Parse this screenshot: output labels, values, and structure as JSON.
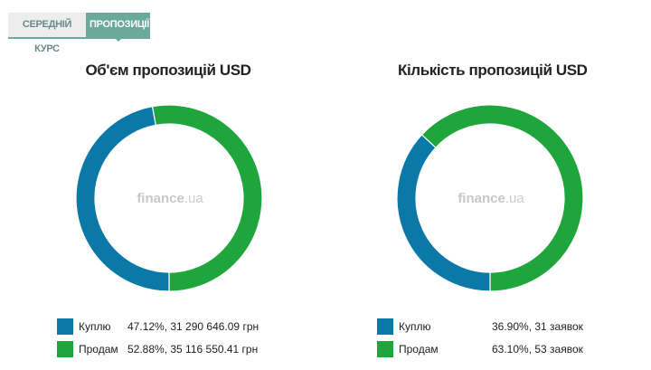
{
  "tabs": [
    {
      "label": "Середній курс",
      "active": false
    },
    {
      "label": "Пропозиції",
      "active": true
    }
  ],
  "colors": {
    "buy": "#0b79a8",
    "sell": "#1ea63c",
    "tab_active": "#6ba99c",
    "tab_inactive": "#ededed"
  },
  "watermark": {
    "brand": "finance",
    "tld": ".ua"
  },
  "chart_data": [
    {
      "type": "pie",
      "title": "Об'єм пропозицій USD",
      "slices": [
        {
          "label": "Куплю",
          "percent": 47.12,
          "value_text": "47.12%, 31 290 646.09 грн",
          "color": "#0b79a8"
        },
        {
          "label": "Продам",
          "percent": 52.88,
          "value_text": "52.88%, 35 116 550.41 грн",
          "color": "#1ea63c"
        }
      ]
    },
    {
      "type": "pie",
      "title": "Кількість пропозицій USD",
      "slices": [
        {
          "label": "Куплю",
          "percent": 36.9,
          "value_text": "36.90%, 31 заявок",
          "color": "#0b79a8"
        },
        {
          "label": "Продам",
          "percent": 63.1,
          "value_text": "63.10%, 53 заявок",
          "color": "#1ea63c"
        }
      ]
    }
  ]
}
